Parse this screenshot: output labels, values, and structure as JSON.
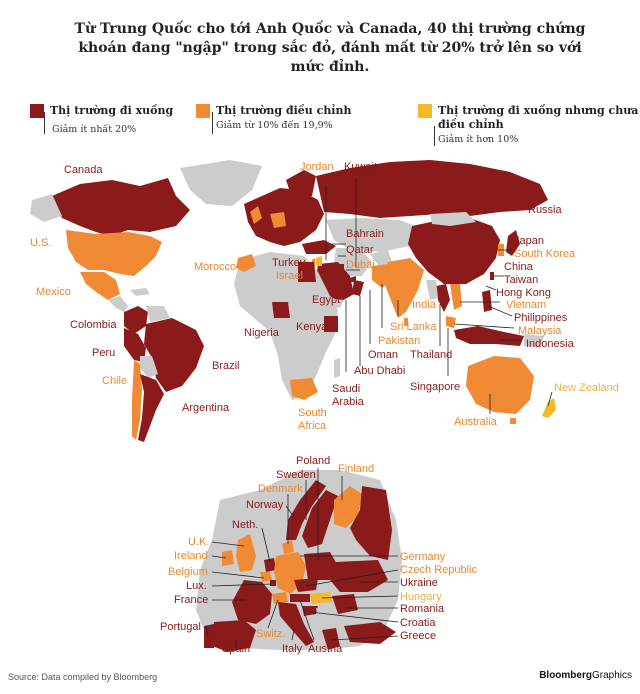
{
  "title": "Từ Trung Quốc cho tới Anh Quốc và Canada, 40 thị trường chứng khoán đang \"ngập\" trong sắc đỏ, đánh mất từ 20% trở lên so với mức đỉnh.",
  "colors": {
    "decline": "#8b1a1a",
    "correction": "#f08a35",
    "mild": "#f5b829",
    "neutral": "#cccccc"
  },
  "legend": [
    {
      "key": "decline",
      "label": "Thị trường đi xuống",
      "sub": "Giảm ít nhất 20%"
    },
    {
      "key": "correction",
      "label": "Thị trường điều chỉnh",
      "sub": "Giảm từ 10% đến 19,9%"
    },
    {
      "key": "mild",
      "label": "Thị trường đi xuống nhưng chưa điều chỉnh",
      "label_line1": "Thị trường đi xuống nhưng chưa",
      "label_line2": "điều chỉnh",
      "sub": "Giảm ít hơn 10%"
    }
  ],
  "world_labels": {
    "canada": "Canada",
    "us": "U.S.",
    "mexico": "Mexico",
    "colombia": "Colombia",
    "peru": "Peru",
    "chile": "Chile",
    "brazil": "Brazil",
    "argentina": "Argentina",
    "jordan": "Jordan",
    "kuwait": "Kuwait",
    "russia": "Russia",
    "bahrain": "Bahrain",
    "qatar": "Qatar",
    "dubai": "Dubai",
    "morocco": "Morocco",
    "turkey": "Turkey",
    "israel": "Israel",
    "egypt": "Egypt",
    "nigeria": "Nigeria",
    "kenya": "Kenya",
    "india": "India",
    "sri_lanka": "Sri Lanka",
    "pakistan": "Pakistan",
    "oman": "Oman",
    "abu_dhabi": "Abu Dhabi",
    "saudi_arabia": "Saudi Arabia",
    "saudi_line1": "Saudi",
    "saudi_line2": "Arabia",
    "south_africa": "South Africa",
    "sa_line1": "South",
    "sa_line2": "Africa",
    "thailand": "Thailand",
    "singapore": "Singapore",
    "japan": "Japan",
    "south_korea": "South Korea",
    "china": "China",
    "taiwan": "Taiwan",
    "hong_kong": "Hong Kong",
    "vietnam": "Vietnam",
    "philippines": "Philippines",
    "malaysia": "Malaysia",
    "indonesia": "Indonesia",
    "australia": "Australia",
    "new_zealand": "New Zealand"
  },
  "europe_labels": {
    "poland": "Poland",
    "sweden": "Sweden",
    "finland": "Finland",
    "denmark": "Denmark",
    "norway": "Norway",
    "neth": "Neth.",
    "uk": "U.K.",
    "ireland": "Ireland",
    "belgium": "Belgium",
    "lux": "Lux.",
    "france": "France",
    "portugal": "Portugal",
    "spain": "Spain",
    "switz": "Switz.",
    "italy": "Italy",
    "austria": "Austria",
    "germany": "Germany",
    "czech": "Czech Republic",
    "ukraine": "Ukraine",
    "hungary": "Hungary",
    "romania": "Romania",
    "croatia": "Croatia",
    "greece": "Greece"
  },
  "footer": {
    "source": "Source: Data compiled by Bloomberg",
    "brand_bold": "Bloomberg",
    "brand_light": "Graphics"
  }
}
